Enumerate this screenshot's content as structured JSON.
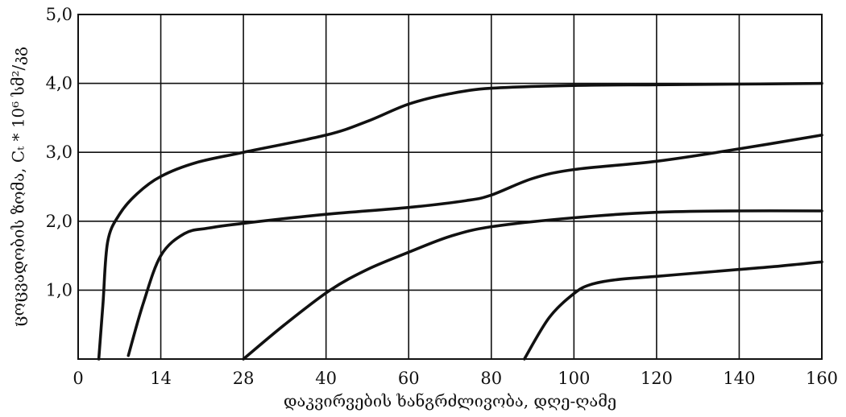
{
  "chart_data": {
    "type": "line",
    "title": "",
    "xlabel": "დაკვირვების ხანგრძლივობა, დღე-ღამე",
    "ylabel": "ცოცვადობის ზომა, Cₜ * 10⁶ სმ²/კგ",
    "x_ticks": [
      "0",
      "14",
      "28",
      "40",
      "60",
      "80",
      "100",
      "120",
      "140",
      "160"
    ],
    "y_ticks": [
      "1,0",
      "2,0",
      "3,0",
      "4,0",
      "5,0"
    ],
    "y_tick_values": [
      1,
      2,
      3,
      4,
      5
    ],
    "ylim": [
      0,
      5
    ],
    "grid": true,
    "series": [
      {
        "points": [
          [
            3.5,
            0
          ],
          [
            4.2,
            0.8
          ],
          [
            5,
            1.7
          ],
          [
            7,
            2.1
          ],
          [
            10,
            2.4
          ],
          [
            14,
            2.65
          ],
          [
            20,
            2.85
          ],
          [
            28,
            3.0
          ],
          [
            40,
            3.25
          ],
          [
            50,
            3.45
          ],
          [
            60,
            3.7
          ],
          [
            70,
            3.85
          ],
          [
            80,
            3.93
          ],
          [
            100,
            3.97
          ],
          [
            120,
            3.98
          ],
          [
            140,
            3.99
          ],
          [
            160,
            4.0
          ]
        ]
      },
      {
        "points": [
          [
            8.5,
            0.05
          ],
          [
            11,
            0.8
          ],
          [
            14,
            1.5
          ],
          [
            18,
            1.82
          ],
          [
            22,
            1.9
          ],
          [
            28,
            1.97
          ],
          [
            40,
            2.1
          ],
          [
            60,
            2.2
          ],
          [
            74,
            2.3
          ],
          [
            80,
            2.38
          ],
          [
            90,
            2.62
          ],
          [
            100,
            2.75
          ],
          [
            120,
            2.87
          ],
          [
            140,
            3.05
          ],
          [
            160,
            3.25
          ]
        ]
      },
      {
        "points": [
          [
            28,
            0
          ],
          [
            34,
            0.5
          ],
          [
            41,
            1.0
          ],
          [
            50,
            1.3
          ],
          [
            60,
            1.55
          ],
          [
            70,
            1.78
          ],
          [
            80,
            1.92
          ],
          [
            100,
            2.05
          ],
          [
            120,
            2.13
          ],
          [
            140,
            2.15
          ],
          [
            160,
            2.15
          ]
        ]
      },
      {
        "points": [
          [
            88,
            0
          ],
          [
            94,
            0.6
          ],
          [
            100,
            0.95
          ],
          [
            104,
            1.08
          ],
          [
            110,
            1.15
          ],
          [
            120,
            1.2
          ],
          [
            130,
            1.25
          ],
          [
            140,
            1.3
          ],
          [
            150,
            1.35
          ],
          [
            160,
            1.41
          ]
        ]
      }
    ]
  }
}
